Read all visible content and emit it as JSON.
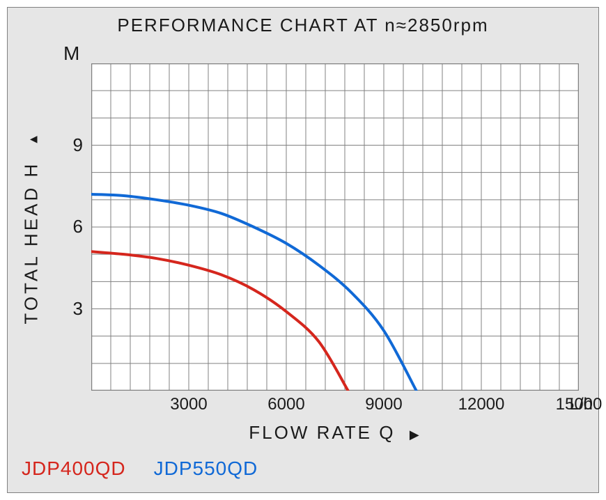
{
  "chart": {
    "type": "line",
    "title": "PERFORMANCE CHART AT n≈2850rpm",
    "title_fontsize": 26,
    "title_color": "#1a1a1a",
    "background_color": "#e6e6e6",
    "plot_background_color": "#ffffff",
    "border_color": "#808080",
    "grid_color": "#808080",
    "grid_line_width": 1,
    "x_axis": {
      "label": "FLOW  RATE  Q",
      "label_arrow": "▶",
      "unit": "L/h",
      "min": 0,
      "max": 15000,
      "tick_step": 3000,
      "tick_labels": [
        "3000",
        "6000",
        "9000",
        "12000",
        "15000"
      ],
      "minor_divisions": 5,
      "label_fontsize": 26,
      "tick_fontsize": 24,
      "label_color": "#1a1a1a"
    },
    "y_axis": {
      "label": "TOTAL  HEAD  H",
      "label_arrow": "▲",
      "unit": "M",
      "min": 0,
      "max": 12,
      "tick_step": 3,
      "tick_labels": [
        "3",
        "6",
        "9"
      ],
      "minor_divisions": 3,
      "label_fontsize": 26,
      "tick_fontsize": 26,
      "label_color": "#1a1a1a"
    },
    "series": [
      {
        "name": "JDP400QD",
        "color": "#d5261d",
        "line_width": 4,
        "points": [
          {
            "x": 0,
            "y": 5.1
          },
          {
            "x": 1000,
            "y": 5.0
          },
          {
            "x": 2000,
            "y": 4.85
          },
          {
            "x": 3000,
            "y": 4.6
          },
          {
            "x": 4000,
            "y": 4.25
          },
          {
            "x": 5000,
            "y": 3.7
          },
          {
            "x": 6000,
            "y": 2.9
          },
          {
            "x": 7000,
            "y": 1.8
          },
          {
            "x": 7900,
            "y": 0.0
          }
        ]
      },
      {
        "name": "JDP550QD",
        "color": "#1069d6",
        "line_width": 4,
        "points": [
          {
            "x": 0,
            "y": 7.2
          },
          {
            "x": 1000,
            "y": 7.15
          },
          {
            "x": 2000,
            "y": 7.0
          },
          {
            "x": 3000,
            "y": 6.8
          },
          {
            "x": 4000,
            "y": 6.5
          },
          {
            "x": 5000,
            "y": 6.0
          },
          {
            "x": 6000,
            "y": 5.4
          },
          {
            "x": 7000,
            "y": 4.6
          },
          {
            "x": 8000,
            "y": 3.6
          },
          {
            "x": 9000,
            "y": 2.2
          },
          {
            "x": 10000,
            "y": 0.0
          }
        ]
      }
    ],
    "legend": {
      "position": "bottom-left",
      "fontsize": 28,
      "items": [
        {
          "label": "JDP400QD",
          "color": "#d5261d"
        },
        {
          "label": "JDP550QD",
          "color": "#1069d6"
        }
      ]
    }
  }
}
